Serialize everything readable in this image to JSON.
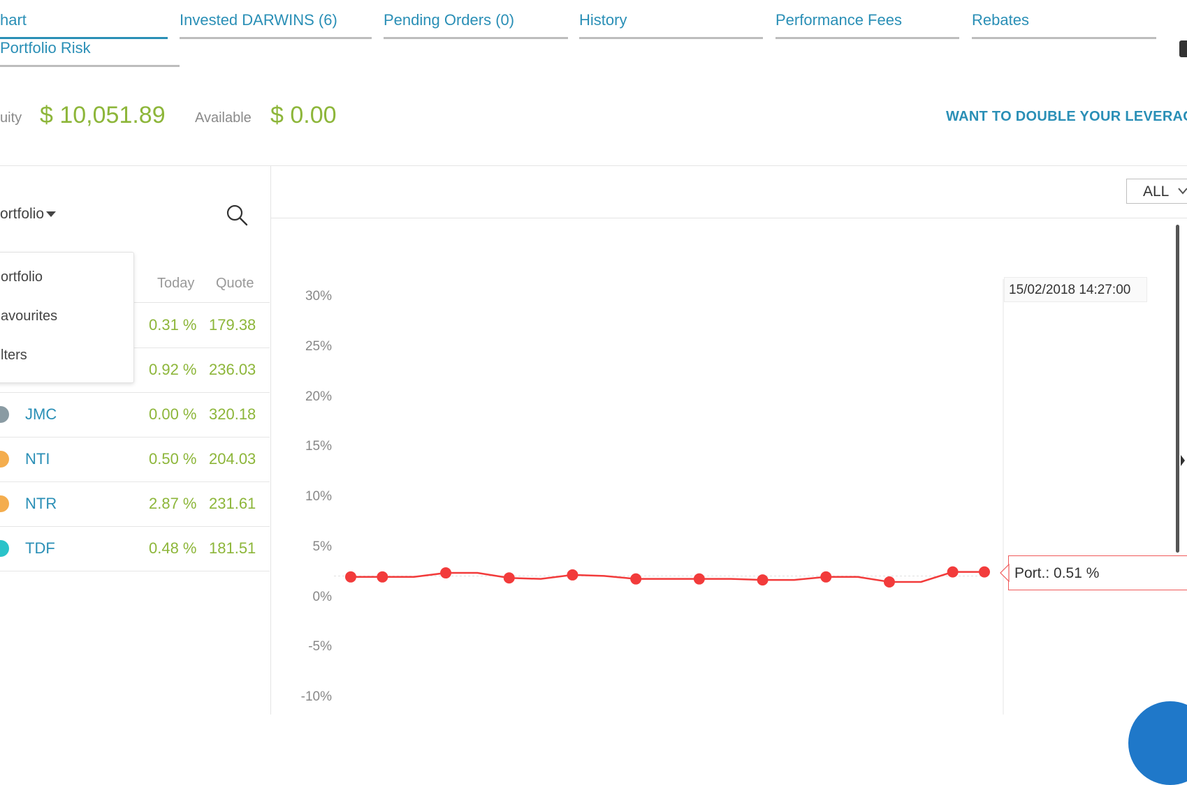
{
  "tabs": [
    {
      "label": "hart",
      "active": true
    },
    {
      "label": "Invested DARWINS (6)"
    },
    {
      "label": "Pending Orders (0)"
    },
    {
      "label": "History"
    },
    {
      "label": "Performance Fees"
    },
    {
      "label": "Rebates"
    },
    {
      "label": "Portfolio Risk"
    }
  ],
  "summary": {
    "equity_label": "uity",
    "equity_value": "$ 10,051.89",
    "available_label": "Available",
    "available_value": "$ 0.00",
    "leverage_link": "WANT TO DOUBLE YOUR LEVERAG"
  },
  "sidebar": {
    "select_label": "ortfolio",
    "columns": {
      "today": "Today",
      "quote": "Quote"
    },
    "dropdown": [
      "ortfolio",
      "avourites",
      "lters"
    ],
    "rows": [
      {
        "name": "",
        "today": "0.31 %",
        "quote": "179.38",
        "color": ""
      },
      {
        "name": "",
        "today": "0.92 %",
        "quote": "236.03",
        "color": ""
      },
      {
        "name": "JMC",
        "today": "0.00 %",
        "quote": "320.18",
        "color": "#8a9ba3"
      },
      {
        "name": "NTI",
        "today": "0.50 %",
        "quote": "204.03",
        "color": "#f4ad4e"
      },
      {
        "name": "NTR",
        "today": "2.87 %",
        "quote": "231.61",
        "color": "#f4ad4e"
      },
      {
        "name": "TDF",
        "today": "0.48 %",
        "quote": "181.51",
        "color": "#2ac3c9"
      }
    ]
  },
  "chart_toolbar": {
    "range": "ALL"
  },
  "chart_data": {
    "type": "line",
    "title": "",
    "xlabel": "",
    "ylabel": "",
    "ylim": [
      -10,
      30
    ],
    "y_ticks": [
      "30%",
      "25%",
      "20%",
      "15%",
      "10%",
      "5%",
      "0%",
      "-5%",
      "-10%"
    ],
    "series": [
      {
        "name": "Port.",
        "color": "#f23b3b",
        "values": [
          2.0,
          2.0,
          2.0,
          2.4,
          2.4,
          1.9,
          1.8,
          2.2,
          2.1,
          1.8,
          1.8,
          1.8,
          1.8,
          1.7,
          1.7,
          2.0,
          2.0,
          1.5,
          1.5,
          2.5,
          2.5
        ],
        "markers": [
          0,
          1,
          3,
          5,
          7,
          9,
          11,
          13,
          15,
          17,
          19,
          20
        ]
      }
    ],
    "tooltip": {
      "date": "15/02/2018 14:27:00",
      "label": "Port.: 0.51 %"
    }
  }
}
